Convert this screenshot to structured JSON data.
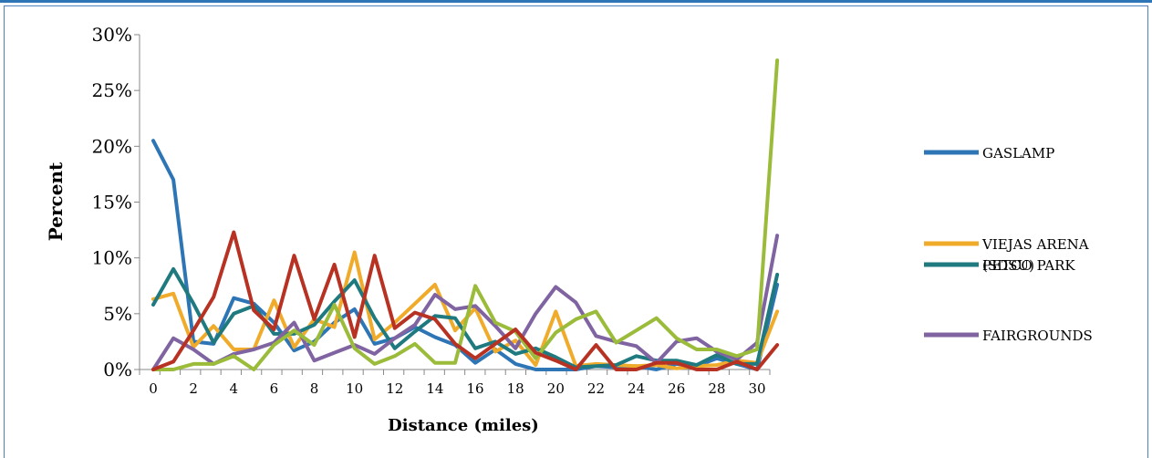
{
  "chart_data": {
    "type": "line",
    "title": "",
    "xlabel": "Distance (miles)",
    "ylabel": "Percent",
    "xlim": [
      0,
      31
    ],
    "ylim": [
      0,
      30
    ],
    "x": [
      0,
      1,
      2,
      3,
      4,
      5,
      6,
      7,
      8,
      9,
      10,
      11,
      12,
      13,
      14,
      15,
      16,
      17,
      18,
      19,
      20,
      21,
      22,
      23,
      24,
      25,
      26,
      27,
      28,
      29,
      30,
      31
    ],
    "x_tick_labels": [
      "0",
      "2",
      "4",
      "6",
      "8",
      "10",
      "12",
      "14",
      "16",
      "18",
      "20",
      "22",
      "24",
      "26",
      "28",
      "30"
    ],
    "y_ticks": [
      0,
      5,
      10,
      15,
      20,
      25,
      30
    ],
    "y_tick_labels": [
      "0%",
      "5%",
      "10%",
      "15%",
      "20%",
      "25%",
      "30%"
    ],
    "grid": false,
    "legend_position": "right",
    "series": [
      {
        "name": "GASLAMP",
        "color": "#2e75b6",
        "values": [
          20.5,
          17.0,
          2.5,
          2.3,
          6.4,
          5.9,
          4.2,
          1.7,
          2.5,
          4.2,
          5.4,
          2.3,
          2.8,
          3.8,
          2.9,
          2.2,
          0.6,
          1.8,
          0.5,
          0,
          0,
          0,
          0.3,
          0.2,
          0.3,
          0,
          0.5,
          0.3,
          1.0,
          0.5,
          0,
          7.6
        ]
      },
      {
        "name": "VIEJAS ARENA (SDSU)",
        "color": "#f0ab2b",
        "values": [
          6.3,
          6.8,
          2.0,
          3.9,
          1.8,
          1.8,
          6.2,
          2.0,
          4.5,
          3.8,
          10.5,
          2.7,
          4.2,
          5.9,
          7.6,
          3.5,
          5.5,
          1.6,
          2.6,
          0.4,
          5.2,
          0.3,
          0.5,
          0.4,
          0.3,
          0.4,
          0.1,
          0.3,
          0.4,
          0.8,
          0.6,
          5.2
        ]
      },
      {
        "name": "PETCO PARK",
        "color": "#1f7a80",
        "values": [
          5.8,
          9.0,
          5.9,
          2.4,
          5.0,
          5.7,
          3.2,
          3.2,
          4.0,
          6.1,
          8.0,
          4.6,
          1.9,
          3.4,
          4.8,
          4.6,
          1.9,
          2.5,
          1.4,
          1.9,
          1.1,
          0.2,
          0.3,
          0.4,
          1.2,
          0.8,
          0.8,
          0.4,
          1.3,
          0.5,
          0.5,
          8.5
        ]
      },
      {
        "name": "FAIRGROUNDS",
        "color": "#8064a2",
        "values": [
          0,
          2.8,
          1.8,
          0.5,
          1.4,
          1.8,
          2.4,
          4.2,
          0.8,
          1.5,
          2.2,
          1.4,
          2.8,
          4.0,
          6.7,
          5.4,
          5.7,
          3.9,
          1.9,
          5.0,
          7.4,
          6.0,
          3.0,
          2.5,
          2.1,
          0.6,
          2.5,
          2.8,
          1.6,
          0.9,
          2.4,
          12.0
        ]
      },
      {
        "name": "",
        "color": "#9bbb3a",
        "values": [
          0,
          0,
          0.5,
          0.5,
          1.2,
          0,
          2.2,
          3.5,
          2.2,
          5.8,
          1.9,
          0.5,
          1.2,
          2.3,
          0.6,
          0.6,
          7.5,
          4.2,
          3.4,
          1.0,
          3.3,
          4.5,
          5.2,
          2.4,
          3.5,
          4.6,
          2.8,
          1.8,
          1.8,
          1.2,
          1.8,
          27.7
        ]
      },
      {
        "name": "",
        "color": "#b83224",
        "values": [
          0,
          0.7,
          3.5,
          6.5,
          12.3,
          5.3,
          3.6,
          10.2,
          4.5,
          9.4,
          2.9,
          10.2,
          3.7,
          5.1,
          4.5,
          2.3,
          1.0,
          2.3,
          3.6,
          1.5,
          0.8,
          0,
          2.2,
          0,
          0,
          0.6,
          0.6,
          0,
          0,
          0.7,
          0,
          2.2
        ]
      }
    ]
  }
}
